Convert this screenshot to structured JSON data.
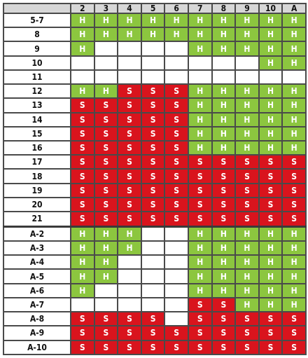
{
  "colors": {
    "hit": "#8cc63f",
    "stand": "#d9141d",
    "empty": "#ffffff",
    "header_bg": "#d7d7d7",
    "grid_line": "#4a4a4a"
  },
  "dealer_cards": [
    "2",
    "3",
    "4",
    "5",
    "6",
    "7",
    "8",
    "9",
    "10",
    "A"
  ],
  "rows": [
    {
      "label": "5-7",
      "cells": [
        "H",
        "H",
        "H",
        "H",
        "H",
        "H",
        "H",
        "H",
        "H",
        "H"
      ]
    },
    {
      "label": "8",
      "cells": [
        "H",
        "H",
        "H",
        "H",
        "H",
        "H",
        "H",
        "H",
        "H",
        "H"
      ]
    },
    {
      "label": "9",
      "cells": [
        "H",
        "",
        "",
        "",
        "",
        "H",
        "H",
        "H",
        "H",
        "H"
      ]
    },
    {
      "label": "10",
      "cells": [
        "",
        "",
        "",
        "",
        "",
        "",
        "",
        "",
        "H",
        "H"
      ]
    },
    {
      "label": "11",
      "cells": [
        "",
        "",
        "",
        "",
        "",
        "",
        "",
        "",
        "",
        ""
      ]
    },
    {
      "label": "12",
      "cells": [
        "H",
        "H",
        "S",
        "S",
        "S",
        "H",
        "H",
        "H",
        "H",
        "H"
      ]
    },
    {
      "label": "13",
      "cells": [
        "S",
        "S",
        "S",
        "S",
        "S",
        "H",
        "H",
        "H",
        "H",
        "H"
      ]
    },
    {
      "label": "14",
      "cells": [
        "S",
        "S",
        "S",
        "S",
        "S",
        "H",
        "H",
        "H",
        "H",
        "H"
      ]
    },
    {
      "label": "15",
      "cells": [
        "S",
        "S",
        "S",
        "S",
        "S",
        "H",
        "H",
        "H",
        "H",
        "H"
      ]
    },
    {
      "label": "16",
      "cells": [
        "S",
        "S",
        "S",
        "S",
        "S",
        "H",
        "H",
        "H",
        "H",
        "H"
      ]
    },
    {
      "label": "17",
      "cells": [
        "S",
        "S",
        "S",
        "S",
        "S",
        "S",
        "S",
        "S",
        "S",
        "S"
      ]
    },
    {
      "label": "18",
      "cells": [
        "S",
        "S",
        "S",
        "S",
        "S",
        "S",
        "S",
        "S",
        "S",
        "S"
      ]
    },
    {
      "label": "19",
      "cells": [
        "S",
        "S",
        "S",
        "S",
        "S",
        "S",
        "S",
        "S",
        "S",
        "S"
      ]
    },
    {
      "label": "20",
      "cells": [
        "S",
        "S",
        "S",
        "S",
        "S",
        "S",
        "S",
        "S",
        "S",
        "S"
      ]
    },
    {
      "label": "21",
      "cells": [
        "S",
        "S",
        "S",
        "S",
        "S",
        "S",
        "S",
        "S",
        "S",
        "S"
      ]
    },
    {
      "label": "A-2",
      "cells": [
        "H",
        "H",
        "H",
        "",
        "",
        "H",
        "H",
        "H",
        "H",
        "H"
      ]
    },
    {
      "label": "A-3",
      "cells": [
        "H",
        "H",
        "H",
        "",
        "",
        "H",
        "H",
        "H",
        "H",
        "H"
      ]
    },
    {
      "label": "A-4",
      "cells": [
        "H",
        "H",
        "",
        "",
        "",
        "H",
        "H",
        "H",
        "H",
        "H"
      ]
    },
    {
      "label": "A-5",
      "cells": [
        "H",
        "H",
        "",
        "",
        "",
        "H",
        "H",
        "H",
        "H",
        "H"
      ]
    },
    {
      "label": "A-6",
      "cells": [
        "H",
        "",
        "",
        "",
        "",
        "H",
        "H",
        "H",
        "H",
        "H"
      ]
    },
    {
      "label": "A-7",
      "cells": [
        "",
        "",
        "",
        "",
        "",
        "S",
        "S",
        "H",
        "H",
        "H"
      ]
    },
    {
      "label": "A-8",
      "cells": [
        "S",
        "S",
        "S",
        "S",
        "",
        "S",
        "S",
        "S",
        "S",
        "S"
      ]
    },
    {
      "label": "A-9",
      "cells": [
        "S",
        "S",
        "S",
        "S",
        "S",
        "S",
        "S",
        "S",
        "S",
        "S"
      ]
    },
    {
      "label": "A-10",
      "cells": [
        "S",
        "S",
        "S",
        "S",
        "S",
        "S",
        "S",
        "S",
        "S",
        "S"
      ]
    }
  ]
}
